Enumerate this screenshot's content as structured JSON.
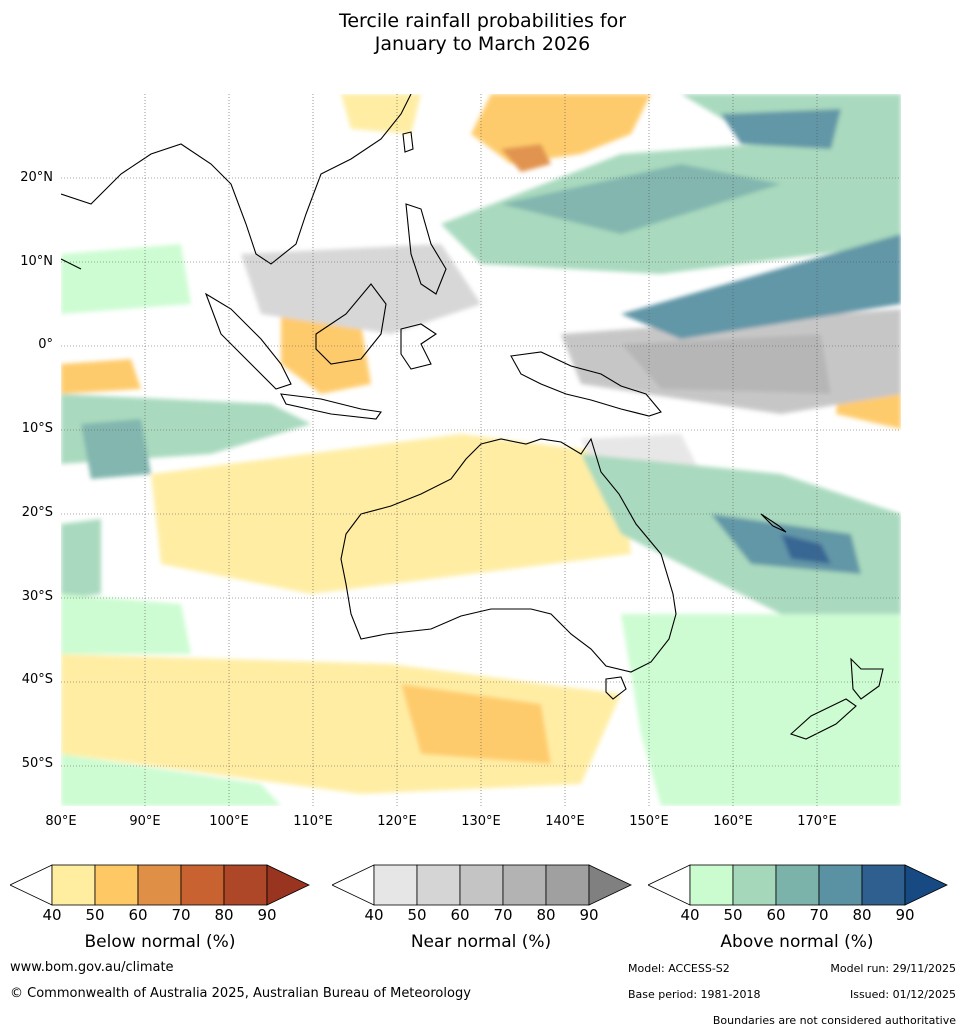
{
  "title": {
    "line1": "Tercile rainfall probabilities for",
    "line2": "January to March 2026"
  },
  "map": {
    "lat_labels": [
      "20°N",
      "10°N",
      "0°",
      "10°S",
      "20°S",
      "30°S",
      "40°S",
      "50°S"
    ],
    "lat_values": [
      20,
      10,
      0,
      -10,
      -20,
      -30,
      -40,
      -50
    ],
    "lon_labels": [
      "80°E",
      "90°E",
      "100°E",
      "110°E",
      "120°E",
      "130°E",
      "140°E",
      "150°E",
      "160°E",
      "170°E"
    ],
    "lon_values": [
      80,
      90,
      100,
      110,
      120,
      130,
      140,
      150,
      160,
      170
    ],
    "lon_range": [
      80,
      180
    ],
    "lat_range": [
      -55,
      30
    ],
    "grid": true
  },
  "legends": [
    {
      "title": "Below normal (%)",
      "ticks": [
        "40",
        "50",
        "60",
        "70",
        "80",
        "90"
      ],
      "under_color": "#ffffff",
      "colors": [
        "#ffeda0",
        "#fec965",
        "#e08f46",
        "#c96231",
        "#ad4728"
      ],
      "over_color": "#98341f"
    },
    {
      "title": "Near normal (%)",
      "ticks": [
        "40",
        "50",
        "60",
        "70",
        "80",
        "90"
      ],
      "under_color": "#ffffff",
      "colors": [
        "#e6e6e6",
        "#d5d5d5",
        "#c4c4c4",
        "#b3b3b3",
        "#a0a0a0"
      ],
      "over_color": "#808080"
    },
    {
      "title": "Above normal (%)",
      "ticks": [
        "40",
        "50",
        "60",
        "70",
        "80",
        "90"
      ],
      "under_color": "#ffffff",
      "colors": [
        "#cbfcd0",
        "#a5d8bb",
        "#7bb3ab",
        "#5a92a3",
        "#2f5f8f"
      ],
      "over_color": "#174a82"
    }
  ],
  "footer": {
    "website": "www.bom.gov.au/climate",
    "copyright": "© Commonwealth of Australia 2025, Australian Bureau of Meteorology",
    "model": "Model: ACCESS-S2",
    "base_period": "Base period: 1981-2018",
    "model_run": "Model run: 29/11/2025",
    "issued": "Issued: 01/12/2025",
    "disclaimer": "Boundaries are not considered authoritative"
  }
}
